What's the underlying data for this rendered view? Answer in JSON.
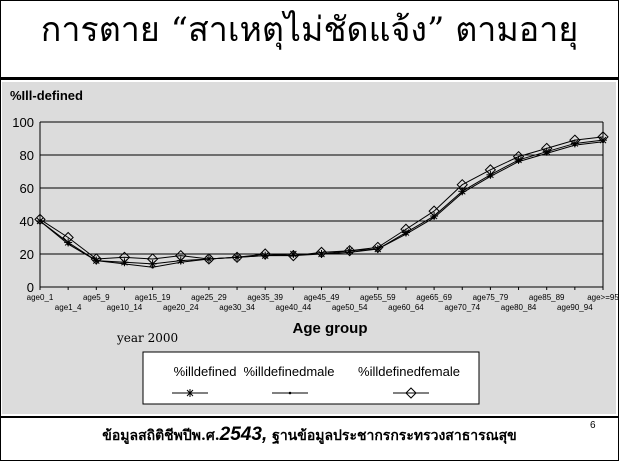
{
  "slide": {
    "title": "การตาย “สาเหตุไม่ชัดแจ้ง” ตามอายุ",
    "footer_prefix": "ข้อมูลสถิติชีพปีพ.ศ.",
    "footer_year": "2543,",
    "footer_suffix": " ฐานข้อมูลประชากรกระทรวงสาธารณสุข",
    "page_number": "6"
  },
  "chart_data": {
    "type": "line",
    "ylabel": "%Ill-defined",
    "xlabel": "Age group",
    "annotation": "year 2000",
    "ylim": [
      0,
      100
    ],
    "yticks": [
      "0",
      "20",
      "40",
      "60",
      "80",
      "100"
    ],
    "grid": true,
    "legend_position": "bottom",
    "categories": [
      "age0_1",
      "age1_4",
      "age5_9",
      "age10_14",
      "age15_19",
      "age20_24",
      "age25_29",
      "age30_34",
      "age35_39",
      "age40_44",
      "age45_49",
      "age50_54",
      "age55_59",
      "age60_64",
      "age65_69",
      "age70_74",
      "age75_79",
      "age80_84",
      "age85_89",
      "age90_94",
      "age>=95"
    ],
    "series": [
      {
        "name": "%illdefined",
        "marker": "star",
        "values": [
          40,
          27,
          16,
          15,
          14,
          16,
          17,
          18,
          19,
          20,
          20,
          22,
          23,
          33,
          43,
          58,
          68,
          77,
          82,
          87,
          89
        ]
      },
      {
        "name": "%illdefinedmale",
        "marker": "dot",
        "values": [
          40,
          26,
          16,
          14,
          12,
          15,
          17,
          18,
          19,
          19,
          20,
          21,
          23,
          32,
          42,
          57,
          67,
          76,
          81,
          86,
          88
        ]
      },
      {
        "name": "%illdefinedfemale",
        "marker": "diamond",
        "values": [
          41,
          30,
          17,
          18,
          17,
          19,
          17,
          18,
          20,
          19,
          21,
          22,
          24,
          35,
          46,
          62,
          71,
          79,
          84,
          89,
          91
        ]
      }
    ]
  }
}
